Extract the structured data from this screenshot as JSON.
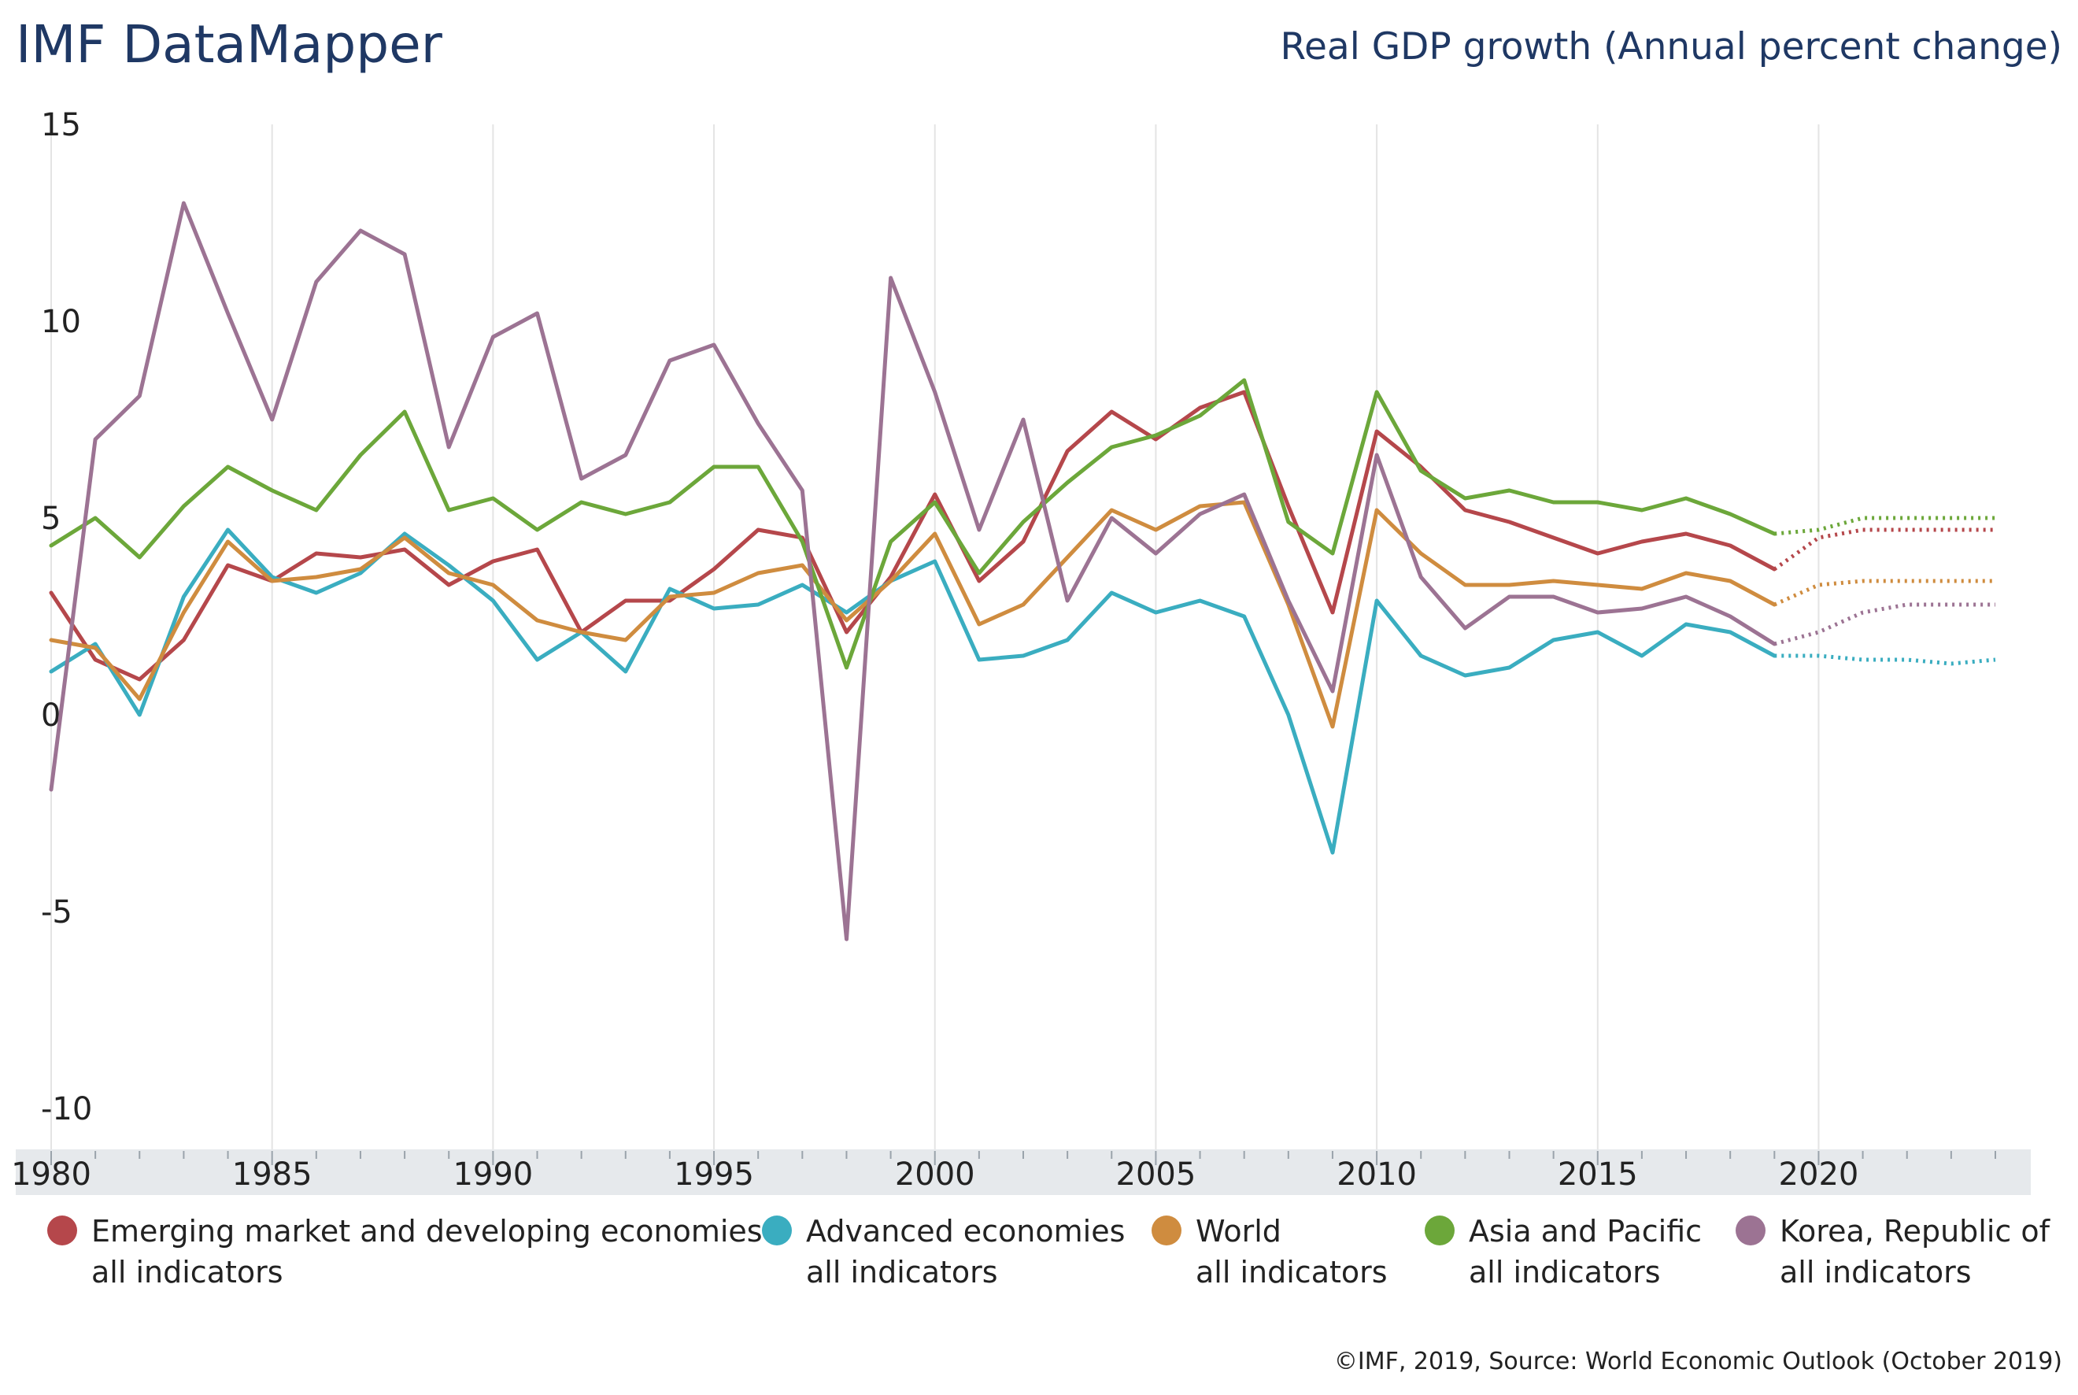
{
  "header": {
    "brand": "IMF DataMapper",
    "subtitle": "Real GDP growth (Annual percent change)"
  },
  "footer": {
    "credit": "©IMF, 2019, Source: World Economic Outlook (October 2019)"
  },
  "colors": {
    "brand": "#1f3864",
    "grid": "#e4e4e4",
    "axis_band": "#e6e9ec"
  },
  "chart_data": {
    "type": "line",
    "title": "Real GDP growth (Annual percent change)",
    "xlabel": "",
    "ylabel": "",
    "ylim": [
      -10,
      15
    ],
    "xlim": [
      1980,
      2024
    ],
    "y_ticks": [
      -10,
      -5,
      0,
      5,
      10,
      15
    ],
    "y_tick_labels": [
      "-10",
      "-5",
      "0",
      "5",
      "10",
      "15"
    ],
    "x_ticks": [
      1980,
      1985,
      1990,
      1995,
      2000,
      2005,
      2010,
      2015,
      2020
    ],
    "x_tick_labels": [
      "1980",
      "1985",
      "1990",
      "1995",
      "2000",
      "2005",
      "2010",
      "2015",
      "2020"
    ],
    "grid": "vertical",
    "legend_position": "bottom",
    "forecast_start_year": 2019,
    "x": [
      1980,
      1981,
      1982,
      1983,
      1984,
      1985,
      1986,
      1987,
      1988,
      1989,
      1990,
      1991,
      1992,
      1993,
      1994,
      1995,
      1996,
      1997,
      1998,
      1999,
      2000,
      2001,
      2002,
      2003,
      2004,
      2005,
      2006,
      2007,
      2008,
      2009,
      2010,
      2011,
      2012,
      2013,
      2014,
      2015,
      2016,
      2017,
      2018,
      2019,
      2020,
      2021,
      2022,
      2023,
      2024
    ],
    "series": [
      {
        "name": "Emerging market and developing economies",
        "subtitle": "all indicators",
        "color": "#b5474b",
        "values": [
          3.1,
          1.4,
          0.9,
          1.9,
          3.8,
          3.4,
          4.1,
          4.0,
          4.2,
          3.3,
          3.9,
          4.2,
          2.1,
          2.9,
          2.9,
          3.7,
          4.7,
          4.5,
          2.1,
          3.5,
          5.6,
          3.4,
          4.4,
          6.7,
          7.7,
          7.0,
          7.8,
          8.2,
          5.3,
          2.6,
          7.2,
          6.3,
          5.2,
          4.9,
          4.5,
          4.1,
          4.4,
          4.6,
          4.3,
          3.7,
          4.5,
          4.7,
          4.7,
          4.7,
          4.7
        ]
      },
      {
        "name": "Advanced economies",
        "subtitle": "all indicators",
        "color": "#3aadc0",
        "values": [
          1.1,
          1.8,
          0.0,
          3.0,
          4.7,
          3.5,
          3.1,
          3.6,
          4.6,
          3.8,
          2.9,
          1.4,
          2.1,
          1.1,
          3.2,
          2.7,
          2.8,
          3.3,
          2.6,
          3.4,
          3.9,
          1.4,
          1.5,
          1.9,
          3.1,
          2.6,
          2.9,
          2.5,
          0.0,
          -3.5,
          2.9,
          1.5,
          1.0,
          1.2,
          1.9,
          2.1,
          1.5,
          2.3,
          2.1,
          1.5,
          1.5,
          1.4,
          1.4,
          1.3,
          1.4
        ]
      },
      {
        "name": "World",
        "subtitle": "all indicators",
        "color": "#cf8c3f",
        "values": [
          1.9,
          1.7,
          0.4,
          2.6,
          4.4,
          3.4,
          3.5,
          3.7,
          4.5,
          3.6,
          3.3,
          2.4,
          2.1,
          1.9,
          3.0,
          3.1,
          3.6,
          3.8,
          2.4,
          3.4,
          4.6,
          2.3,
          2.8,
          4.0,
          5.2,
          4.7,
          5.3,
          5.4,
          2.8,
          -0.3,
          5.2,
          4.1,
          3.3,
          3.3,
          3.4,
          3.3,
          3.2,
          3.6,
          3.4,
          2.8,
          3.3,
          3.4,
          3.4,
          3.4,
          3.4
        ]
      },
      {
        "name": "Asia and Pacific",
        "subtitle": "all indicators",
        "color": "#6ca73a",
        "values": [
          4.3,
          5.0,
          4.0,
          5.3,
          6.3,
          5.7,
          5.2,
          6.6,
          7.7,
          5.2,
          5.5,
          4.7,
          5.4,
          5.1,
          5.4,
          6.3,
          6.3,
          4.4,
          1.2,
          4.4,
          5.4,
          3.6,
          4.9,
          5.9,
          6.8,
          7.1,
          7.6,
          8.5,
          4.9,
          4.1,
          8.2,
          6.2,
          5.5,
          5.7,
          5.4,
          5.4,
          5.2,
          5.5,
          5.1,
          4.6,
          4.7,
          5.0,
          5.0,
          5.0,
          5.0
        ]
      },
      {
        "name": "Korea, Republic of",
        "subtitle": "all indicators",
        "color": "#9c7393",
        "values": [
          -1.9,
          7.0,
          8.1,
          13.0,
          10.2,
          7.5,
          11.0,
          12.3,
          11.7,
          6.8,
          9.6,
          10.2,
          6.0,
          6.6,
          9.0,
          9.4,
          7.4,
          5.7,
          -5.7,
          11.1,
          8.2,
          4.7,
          7.5,
          2.9,
          5.0,
          4.1,
          5.1,
          5.6,
          2.9,
          0.6,
          6.6,
          3.5,
          2.2,
          3.0,
          3.0,
          2.6,
          2.7,
          3.0,
          2.5,
          1.8,
          2.1,
          2.6,
          2.8,
          2.8,
          2.8
        ]
      }
    ]
  }
}
